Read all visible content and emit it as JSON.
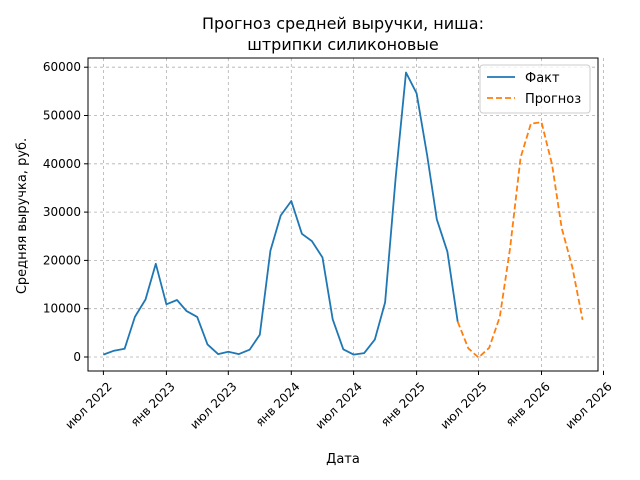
{
  "chart_data": {
    "type": "line",
    "title": [
      "Прогноз средней выручки, ниша:",
      "штрипки силиконовые"
    ],
    "xlabel": "Дата",
    "ylabel": "Средняя выручка, руб.",
    "ylim": [
      -2900,
      61900
    ],
    "xlim": [
      "2022-05-17",
      "2026-06-15"
    ],
    "yticks": [
      0,
      10000,
      20000,
      30000,
      40000,
      50000,
      60000
    ],
    "xticks": [
      {
        "date": "2022-07-01",
        "label": "июл 2022"
      },
      {
        "date": "2023-01-01",
        "label": "янв 2023"
      },
      {
        "date": "2023-07-01",
        "label": "июл 2023"
      },
      {
        "date": "2024-01-01",
        "label": "янв 2024"
      },
      {
        "date": "2024-07-01",
        "label": "июл 2024"
      },
      {
        "date": "2025-01-01",
        "label": "янв 2025"
      },
      {
        "date": "2025-07-01",
        "label": "июл 2025"
      },
      {
        "date": "2026-01-01",
        "label": "янв 2026"
      },
      {
        "date": "2026-07-01",
        "label": "июл 2026"
      }
    ],
    "grid": true,
    "legend_position": "top-right",
    "series": [
      {
        "name": "Факт",
        "color": "#1f77b4",
        "style": "solid",
        "x": [
          "2022-07-01",
          "2022-08-01",
          "2022-09-01",
          "2022-10-01",
          "2022-11-01",
          "2022-12-01",
          "2023-01-01",
          "2023-02-01",
          "2023-03-01",
          "2023-04-01",
          "2023-05-01",
          "2023-06-01",
          "2023-07-01",
          "2023-08-01",
          "2023-09-01",
          "2023-10-01",
          "2023-11-01",
          "2023-12-01",
          "2024-01-01",
          "2024-02-01",
          "2024-03-01",
          "2024-04-01",
          "2024-05-01",
          "2024-06-01",
          "2024-07-01",
          "2024-08-01",
          "2024-09-01",
          "2024-10-01",
          "2024-11-01",
          "2024-12-01",
          "2025-01-01",
          "2025-02-01",
          "2025-03-01",
          "2025-04-01",
          "2025-05-01"
        ],
        "y": [
          500,
          1300,
          1700,
          8300,
          11900,
          19300,
          10900,
          11800,
          9500,
          8300,
          2600,
          600,
          1100,
          600,
          1500,
          4600,
          22000,
          29300,
          32300,
          25500,
          24000,
          20600,
          7800,
          1600,
          500,
          800,
          3600,
          11300,
          37200,
          58900,
          54600,
          41700,
          28500,
          21800,
          7300
        ]
      },
      {
        "name": "Прогноз",
        "color": "#ff7f0e",
        "style": "dashed",
        "x": [
          "2025-05-01",
          "2025-06-01",
          "2025-07-01",
          "2025-08-01",
          "2025-09-01",
          "2025-10-01",
          "2025-11-01",
          "2025-12-01",
          "2026-01-01",
          "2026-02-01",
          "2026-03-01",
          "2026-04-01",
          "2026-05-01"
        ],
        "y": [
          7300,
          1800,
          -100,
          1900,
          8300,
          22400,
          41300,
          48300,
          48600,
          39800,
          26700,
          18600,
          7700
        ]
      }
    ]
  }
}
